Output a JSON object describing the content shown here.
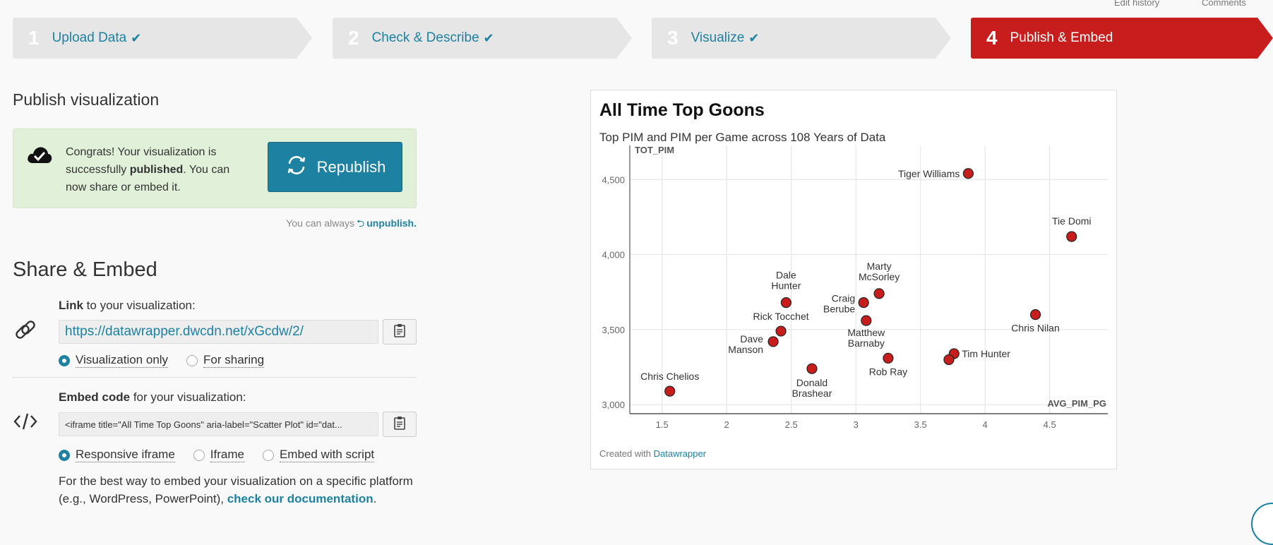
{
  "top_links": [
    "Edit history",
    "Comments"
  ],
  "steps": [
    {
      "num": "1",
      "label": "Upload Data",
      "done": true
    },
    {
      "num": "2",
      "label": "Check & Describe",
      "done": true
    },
    {
      "num": "3",
      "label": "Visualize",
      "done": true
    },
    {
      "num": "4",
      "label": "Publish & Embed",
      "done": false
    }
  ],
  "publish": {
    "heading": "Publish visualization",
    "msg_pre": "Congrats! Your visualization is successfully ",
    "msg_bold": "published",
    "msg_post": ". You can now share or embed it.",
    "republish_label": "Republish",
    "unpublish_pre": "You can always",
    "unpublish_link": "unpublish."
  },
  "share": {
    "heading": "Share & Embed",
    "link_label_bold": "Link",
    "link_label_rest": " to your visualization:",
    "link_url": "https://datawrapper.dwcdn.net/xGcdw/2/",
    "link_options": [
      "Visualization only",
      "For sharing"
    ],
    "embed_label_bold": "Embed code",
    "embed_label_rest": " for your visualization:",
    "embed_code": "<iframe title=\"All Time Top Goons\" aria-label=\"Scatter Plot\" id=\"dat...",
    "embed_options": [
      "Responsive iframe",
      "Iframe",
      "Embed with script"
    ],
    "best_pre": "For the best way to embed your visualization on a specific platform (e.g., WordPress, PowerPoint), ",
    "best_link": "check our documentation",
    "best_post": "."
  },
  "chart_card": {
    "footer_pre": "Created with",
    "footer_link": "Datawrapper"
  },
  "colors": {
    "accent": "#1d81a2",
    "active_step": "#c71e1d",
    "point": "#c71e1d",
    "success_bg": "#e1f0d9"
  },
  "chart_data": {
    "type": "scatter",
    "title": "All Time Top Goons",
    "subtitle": "Top PIM and PIM per Game across 108 Years of Data",
    "xlabel": "AVG_PIM_PG",
    "ylabel": "TOT_PIM",
    "xlim": [
      1.25,
      4.95
    ],
    "ylim": [
      2940,
      4680
    ],
    "xticks": [
      1.5,
      2,
      2.5,
      3,
      3.5,
      4,
      4.5
    ],
    "xtick_labels": [
      "1.5",
      "2",
      "2.5",
      "3",
      "3.5",
      "4",
      "4.5"
    ],
    "yticks": [
      3000,
      3500,
      4000,
      4500
    ],
    "ytick_labels": [
      "3,000",
      "3,500",
      "4,000",
      "4,500"
    ],
    "grid": true,
    "points": [
      {
        "label": "Tiger Williams",
        "x": 3.87,
        "y": 4540
      },
      {
        "label": "Tie Domi",
        "x": 4.67,
        "y": 4120
      },
      {
        "label": "Dale Hunter",
        "x": 2.46,
        "y": 3680
      },
      {
        "label": "Marty McSorley",
        "x": 3.18,
        "y": 3740
      },
      {
        "label": "Craig Berube",
        "x": 3.06,
        "y": 3680
      },
      {
        "label": "Matthew Barnaby",
        "x": 3.08,
        "y": 3560
      },
      {
        "label": "Chris Nilan",
        "x": 4.39,
        "y": 3600
      },
      {
        "label": "Rick Tocchet",
        "x": 2.42,
        "y": 3490
      },
      {
        "label": "Dave Manson",
        "x": 2.36,
        "y": 3420
      },
      {
        "label": "Tim Hunter",
        "x": 3.76,
        "y": 3340
      },
      {
        "label": "",
        "x": 3.72,
        "y": 3300
      },
      {
        "label": "Rob Ray",
        "x": 3.25,
        "y": 3310
      },
      {
        "label": "Donald Brashear",
        "x": 2.66,
        "y": 3240
      },
      {
        "label": "Chris Chelios",
        "x": 1.56,
        "y": 3090
      }
    ]
  }
}
